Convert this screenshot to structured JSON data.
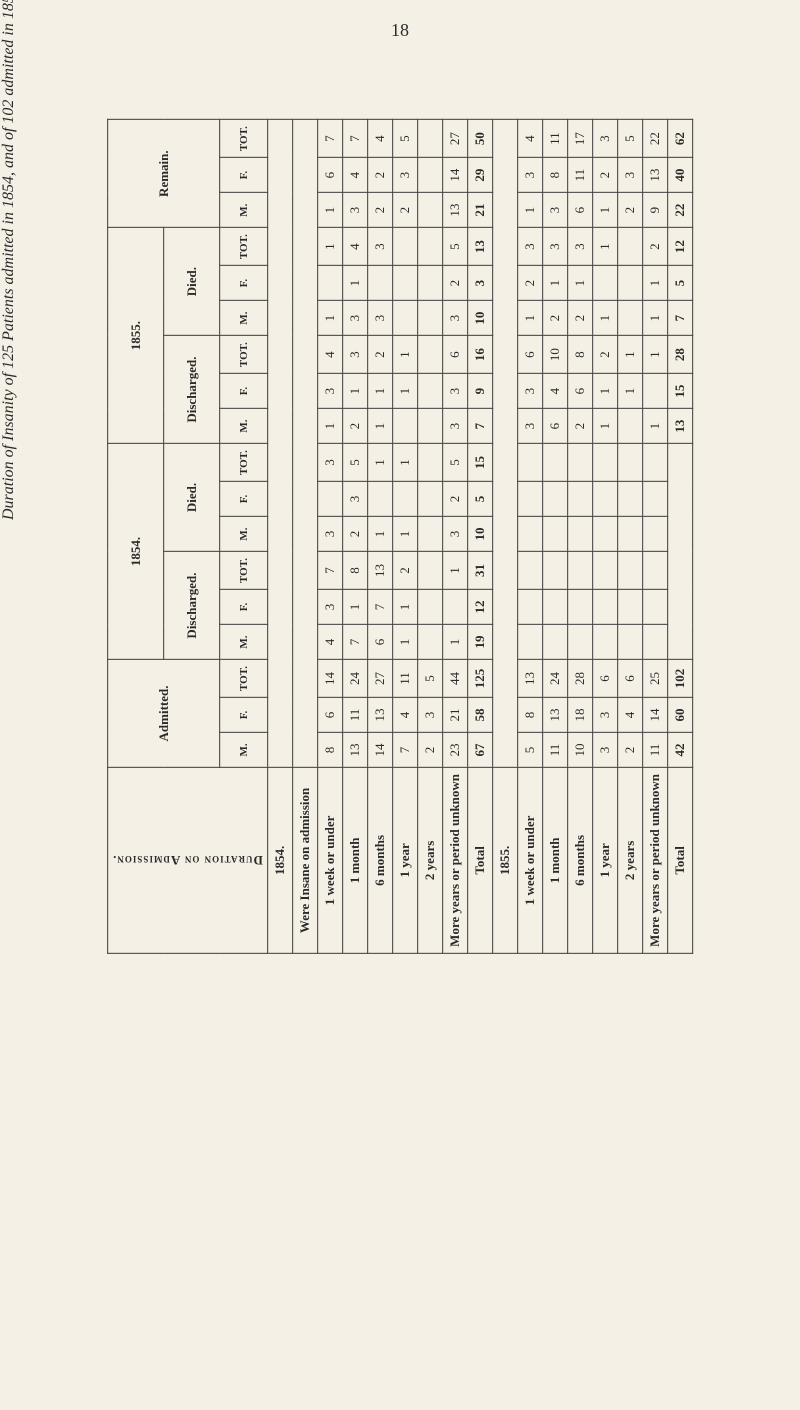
{
  "page_number": "18",
  "caption": "Duration of Insanity of 125 Patients admitted in 1854, and of 102 admitted in 1855.",
  "stub_header": "Duration on Admission.",
  "years": [
    "1854",
    "1855"
  ],
  "blocks": [
    "Admitted.",
    "Discharged.",
    "Died.",
    "Discharged.",
    "Died.",
    "Remain."
  ],
  "year_blocks": [
    "1854.",
    "1855."
  ],
  "subcols": {
    "m": "M.",
    "f": "F.",
    "t": "TOT."
  },
  "rows1854": {
    "header": "1854.",
    "insane": "Were Insane on admission",
    "labels": [
      "1 week or under",
      "1 month",
      "6 months",
      "1 year",
      "2 years",
      "More years or period unknown"
    ],
    "data": {
      "adm": {
        "m": [
          8,
          13,
          14,
          7,
          2,
          23
        ],
        "f": [
          6,
          11,
          13,
          4,
          3,
          21
        ],
        "t": [
          14,
          24,
          27,
          11,
          5,
          44
        ]
      },
      "dis54": {
        "m": [
          4,
          7,
          6,
          1,
          "",
          1
        ],
        "f": [
          3,
          1,
          7,
          1,
          "",
          ""
        ],
        "t": [
          7,
          8,
          13,
          2,
          "",
          1
        ]
      },
      "die54": {
        "m": [
          3,
          2,
          1,
          1,
          "",
          3
        ],
        "f": [
          "",
          3,
          "",
          "",
          "",
          2
        ],
        "t": [
          3,
          5,
          1,
          1,
          "",
          5
        ]
      },
      "dis55": {
        "m": [
          1,
          2,
          1,
          "",
          "",
          3
        ],
        "f": [
          3,
          1,
          1,
          1,
          "",
          3
        ],
        "t": [
          4,
          3,
          2,
          1,
          "",
          6
        ]
      },
      "die55": {
        "m": [
          1,
          3,
          3,
          "",
          "",
          3
        ],
        "f": [
          "",
          1,
          "",
          "",
          "",
          2
        ],
        "t": [
          1,
          4,
          3,
          "",
          "",
          5
        ]
      },
      "rem": {
        "m": [
          1,
          3,
          2,
          2,
          "",
          13
        ],
        "f": [
          6,
          4,
          2,
          3,
          "",
          14
        ],
        "t": [
          7,
          7,
          4,
          5,
          "",
          27
        ]
      }
    },
    "totals": {
      "adm": {
        "m": 67,
        "f": 58,
        "t": 125
      },
      "dis54": {
        "m": 19,
        "f": 12,
        "t": 31
      },
      "die54": {
        "m": 10,
        "f": 5,
        "t": 15
      },
      "dis55": {
        "m": 7,
        "f": 9,
        "t": 16
      },
      "die55": {
        "m": 10,
        "f": 3,
        "t": 13
      },
      "rem": {
        "m": 21,
        "f": 29,
        "t": 50
      }
    }
  },
  "rows1855": {
    "header": "1855.",
    "labels": [
      "1 week or under",
      "1 month",
      "6 months",
      "1 year",
      "2 years",
      "More years or period unknown"
    ],
    "data": {
      "adm": {
        "m": [
          5,
          11,
          10,
          3,
          2,
          11
        ],
        "f": [
          8,
          13,
          18,
          3,
          4,
          14
        ],
        "t": [
          13,
          24,
          28,
          6,
          6,
          25
        ]
      },
      "dis55": {
        "m": [
          3,
          6,
          2,
          1,
          "",
          1
        ],
        "f": [
          3,
          4,
          6,
          1,
          1,
          ""
        ],
        "t": [
          6,
          10,
          8,
          2,
          1,
          1
        ]
      },
      "die55": {
        "m": [
          1,
          2,
          2,
          1,
          "",
          1
        ],
        "f": [
          2,
          1,
          1,
          "",
          "",
          1
        ],
        "t": [
          3,
          3,
          3,
          1,
          "",
          2
        ]
      },
      "rem": {
        "m": [
          1,
          3,
          6,
          1,
          2,
          9
        ],
        "f": [
          3,
          8,
          11,
          2,
          3,
          13
        ],
        "t": [
          4,
          11,
          17,
          3,
          5,
          22
        ]
      }
    },
    "totals": {
      "adm": {
        "m": 42,
        "f": 60,
        "t": 102
      },
      "dis55": {
        "m": 13,
        "f": 15,
        "t": 28
      },
      "die55": {
        "m": 7,
        "f": 5,
        "t": 12
      },
      "rem": {
        "m": 22,
        "f": 40,
        "t": 62
      }
    }
  },
  "total_label": "Total"
}
